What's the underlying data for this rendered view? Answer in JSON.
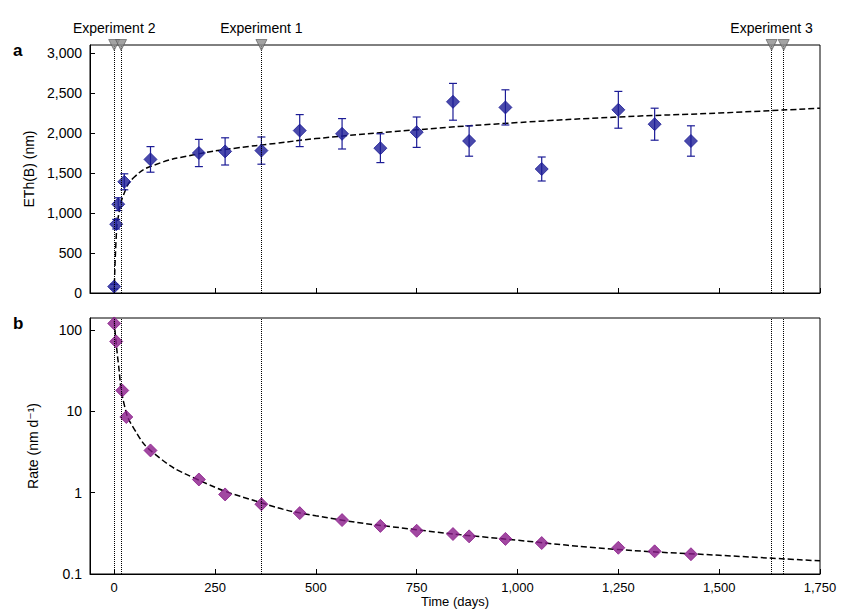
{
  "chart_data": [
    {
      "type": "scatter",
      "title": "a",
      "ylabel": "ETh(B) (nm)",
      "xlim": [
        -60,
        1750
      ],
      "xticks": [
        0,
        250,
        500,
        750,
        1000,
        1250,
        1500,
        1750
      ],
      "ylim": [
        0,
        3100
      ],
      "yticks": [
        0,
        500,
        1000,
        1500,
        2000,
        2500,
        3000
      ],
      "grid": false,
      "tick_labels": "y",
      "annotations": [
        {
          "text": "Experiment 2",
          "x": [
            0,
            17
          ],
          "marker": "triangle"
        },
        {
          "text": "Experiment 1",
          "x": [
            365
          ],
          "marker": "triangle"
        },
        {
          "text": "Experiment 3",
          "x": [
            1630,
            1660
          ],
          "marker": "triangle"
        }
      ],
      "series": [
        {
          "type": "scatter",
          "marker": "diamond",
          "color": "#1c1c96",
          "x": [
            0,
            5,
            10,
            25,
            90,
            210,
            275,
            365,
            460,
            565,
            660,
            750,
            840,
            880,
            970,
            1060,
            1250,
            1340,
            1430
          ],
          "values": [
            80,
            860,
            1110,
            1390,
            1670,
            1750,
            1770,
            1780,
            2030,
            1990,
            1810,
            2010,
            2390,
            1900,
            2320,
            1550,
            2290,
            2110,
            1900
          ],
          "errors": [
            30,
            60,
            80,
            100,
            160,
            170,
            170,
            170,
            200,
            190,
            180,
            190,
            230,
            190,
            220,
            150,
            230,
            200,
            190
          ]
        },
        {
          "type": "line",
          "line_style": "dashed",
          "color": "#000000",
          "x": [
            0,
            5,
            10,
            25,
            50,
            100,
            200,
            300,
            400,
            500,
            750,
            1000,
            1250,
            1500,
            1750
          ],
          "values": [
            0,
            700,
            950,
            1250,
            1450,
            1600,
            1730,
            1810,
            1870,
            1930,
            2040,
            2130,
            2200,
            2250,
            2310
          ]
        }
      ]
    },
    {
      "type": "scatter",
      "title": "b",
      "xlabel": "Time (days)",
      "ylabel": "Rate (nm d⁻¹)",
      "log": "y",
      "xlim": [
        -60,
        1750
      ],
      "xticks": [
        0,
        250,
        500,
        750,
        1000,
        1250,
        1500,
        1750
      ],
      "ylim": [
        0.1,
        140
      ],
      "yticks": [
        0.1,
        1,
        10,
        100
      ],
      "grid": false,
      "vlines": [
        0,
        17,
        365,
        1630,
        1660
      ],
      "series": [
        {
          "type": "scatter",
          "marker": "diamond",
          "color": "#8a1a8a",
          "x": [
            0,
            5,
            20,
            30,
            90,
            210,
            275,
            365,
            460,
            565,
            660,
            750,
            840,
            880,
            970,
            1060,
            1250,
            1340,
            1430
          ],
          "values": [
            120,
            72,
            18,
            8.5,
            3.3,
            1.45,
            0.95,
            0.72,
            0.56,
            0.46,
            0.39,
            0.34,
            0.31,
            0.29,
            0.27,
            0.24,
            0.21,
            0.19,
            0.175
          ]
        },
        {
          "type": "line",
          "line_style": "dashed",
          "color": "#000000",
          "x": [
            0,
            10,
            25,
            50,
            100,
            200,
            365,
            500,
            750,
            1000,
            1250,
            1500,
            1750
          ],
          "values": [
            130,
            40,
            12,
            6,
            3,
            1.5,
            0.75,
            0.52,
            0.35,
            0.26,
            0.2,
            0.17,
            0.145
          ]
        }
      ]
    }
  ]
}
